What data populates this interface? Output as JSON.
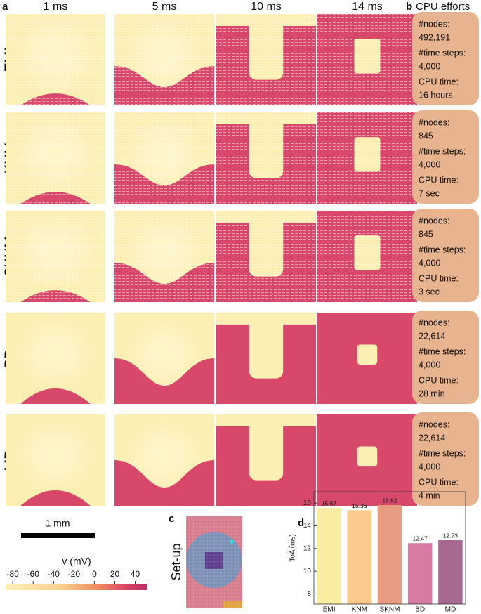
{
  "panel_a": {
    "label": "a",
    "columns": [
      "1 ms",
      "5 ms",
      "10 ms",
      "14 ms"
    ],
    "rows": [
      "EMI",
      "KNM",
      "SKNM",
      "BD",
      "MD"
    ]
  },
  "panel_b": {
    "label": "b",
    "title": "CPU efforts",
    "entries": [
      {
        "nodes_label": "#nodes:",
        "nodes": "492,191",
        "steps_label": "#time steps:",
        "steps": "4,000",
        "cpu_label": "CPU time:",
        "cpu": "16 hours"
      },
      {
        "nodes_label": "#nodes:",
        "nodes": "845",
        "steps_label": "#time steps:",
        "steps": "4,000",
        "cpu_label": "CPU time:",
        "cpu": "7 sec"
      },
      {
        "nodes_label": "#nodes:",
        "nodes": "845",
        "steps_label": "#time steps:",
        "steps": "4,000",
        "cpu_label": "CPU time:",
        "cpu": "3 sec"
      },
      {
        "nodes_label": "#nodes:",
        "nodes": "22,614",
        "steps_label": "#time steps:",
        "steps": "4,000",
        "cpu_label": "CPU time:",
        "cpu": "28 min"
      },
      {
        "nodes_label": "#nodes:",
        "nodes": "22,614",
        "steps_label": "#time steps:",
        "steps": "4,000",
        "cpu_label": "CPU time:",
        "cpu": "4 min"
      }
    ]
  },
  "scale_bar": "1 mm",
  "colorbar": {
    "label": "v (mV)",
    "lim": [
      -87,
      52
    ],
    "ticks": [
      -80,
      -60,
      -40,
      -20,
      0,
      20,
      40
    ]
  },
  "panel_c": {
    "label": "c",
    "title": "Set-up"
  },
  "chart_data": {
    "type": "bar",
    "label": "d",
    "y_label": "ToA (ms)",
    "categories": [
      "EMI",
      "KNM",
      "SKNM",
      "BD",
      "MD"
    ],
    "values": [
      15.57,
      15.36,
      15.82,
      12.47,
      12.73
    ],
    "colors": [
      "#f9eda2",
      "#fcc98c",
      "#e79b80",
      "#d77ba4",
      "#a66a90"
    ],
    "ylim": [
      7.1,
      17
    ],
    "yticks": [
      8,
      10,
      12,
      14,
      16
    ]
  }
}
